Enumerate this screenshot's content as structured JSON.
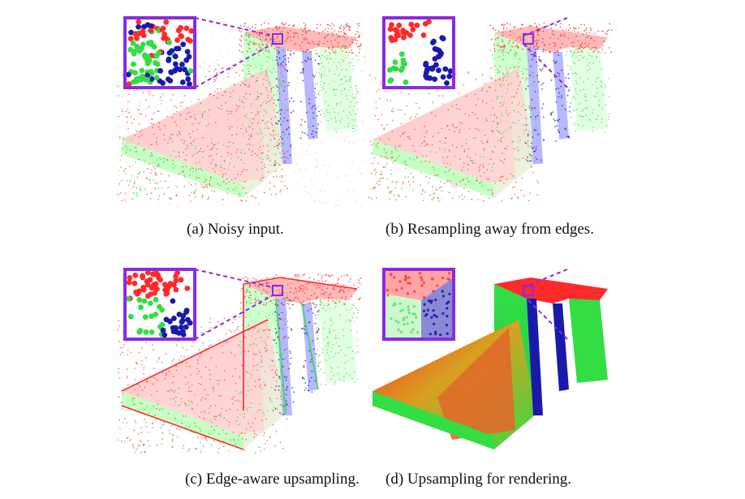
{
  "figure": {
    "subfigures": [
      {
        "id": "a",
        "caption": "(a) Noisy input.",
        "style": "noisy"
      },
      {
        "id": "b",
        "caption": "(b) Resampling away from edges.",
        "style": "resampled"
      },
      {
        "id": "c",
        "caption": "(c) Edge-aware upsampling.",
        "style": "edge"
      },
      {
        "id": "d",
        "caption": "(d) Upsampling for rendering.",
        "style": "rendered"
      }
    ]
  },
  "colors": {
    "red": "#ff2a2a",
    "green": "#33dd44",
    "blue": "#1a1aaa",
    "inset_border": "#8a2be2",
    "callout": "#8a2be2"
  }
}
